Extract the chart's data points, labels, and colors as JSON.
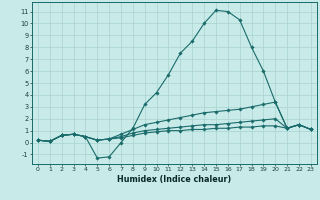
{
  "xlabel": "Humidex (Indice chaleur)",
  "background_color": "#c8eae8",
  "grid_color": "#a8d4d0",
  "line_color": "#1a6b6b",
  "xlim": [
    -0.5,
    23.5
  ],
  "ylim": [
    -1.8,
    11.8
  ],
  "xticks": [
    0,
    1,
    2,
    3,
    4,
    5,
    6,
    7,
    8,
    9,
    10,
    11,
    12,
    13,
    14,
    15,
    16,
    17,
    18,
    19,
    20,
    21,
    22,
    23
  ],
  "yticks": [
    -1,
    0,
    1,
    2,
    3,
    4,
    5,
    6,
    7,
    8,
    9,
    10,
    11
  ],
  "lines": [
    {
      "x": [
        0,
        1,
        2,
        3,
        4,
        5,
        6,
        7,
        8,
        9,
        10,
        11,
        12,
        13,
        14,
        15,
        16,
        17,
        18,
        19,
        20,
        21,
        22,
        23
      ],
      "y": [
        0.2,
        0.1,
        0.6,
        0.7,
        0.5,
        -1.3,
        -1.2,
        0.0,
        1.2,
        3.2,
        4.2,
        5.7,
        7.5,
        8.5,
        10.0,
        11.1,
        11.0,
        10.3,
        8.0,
        6.0,
        3.4,
        1.2,
        1.5,
        1.1
      ]
    },
    {
      "x": [
        0,
        1,
        2,
        3,
        4,
        5,
        6,
        7,
        8,
        9,
        10,
        11,
        12,
        13,
        14,
        15,
        16,
        17,
        18,
        19,
        20,
        21,
        22,
        23
      ],
      "y": [
        0.2,
        0.1,
        0.6,
        0.7,
        0.5,
        0.2,
        0.3,
        0.7,
        1.1,
        1.5,
        1.7,
        1.9,
        2.1,
        2.3,
        2.5,
        2.6,
        2.7,
        2.8,
        3.0,
        3.2,
        3.4,
        1.2,
        1.5,
        1.1
      ]
    },
    {
      "x": [
        0,
        1,
        2,
        3,
        4,
        5,
        6,
        7,
        8,
        9,
        10,
        11,
        12,
        13,
        14,
        15,
        16,
        17,
        18,
        19,
        20,
        21,
        22,
        23
      ],
      "y": [
        0.2,
        0.1,
        0.6,
        0.7,
        0.5,
        0.2,
        0.3,
        0.5,
        0.8,
        1.0,
        1.1,
        1.2,
        1.3,
        1.4,
        1.5,
        1.5,
        1.6,
        1.7,
        1.8,
        1.9,
        2.0,
        1.2,
        1.5,
        1.1
      ]
    },
    {
      "x": [
        0,
        1,
        2,
        3,
        4,
        5,
        6,
        7,
        8,
        9,
        10,
        11,
        12,
        13,
        14,
        15,
        16,
        17,
        18,
        19,
        20,
        21,
        22,
        23
      ],
      "y": [
        0.2,
        0.1,
        0.6,
        0.7,
        0.5,
        0.2,
        0.3,
        0.4,
        0.6,
        0.8,
        0.9,
        1.0,
        1.0,
        1.1,
        1.1,
        1.2,
        1.2,
        1.3,
        1.3,
        1.4,
        1.4,
        1.2,
        1.5,
        1.1
      ]
    }
  ]
}
